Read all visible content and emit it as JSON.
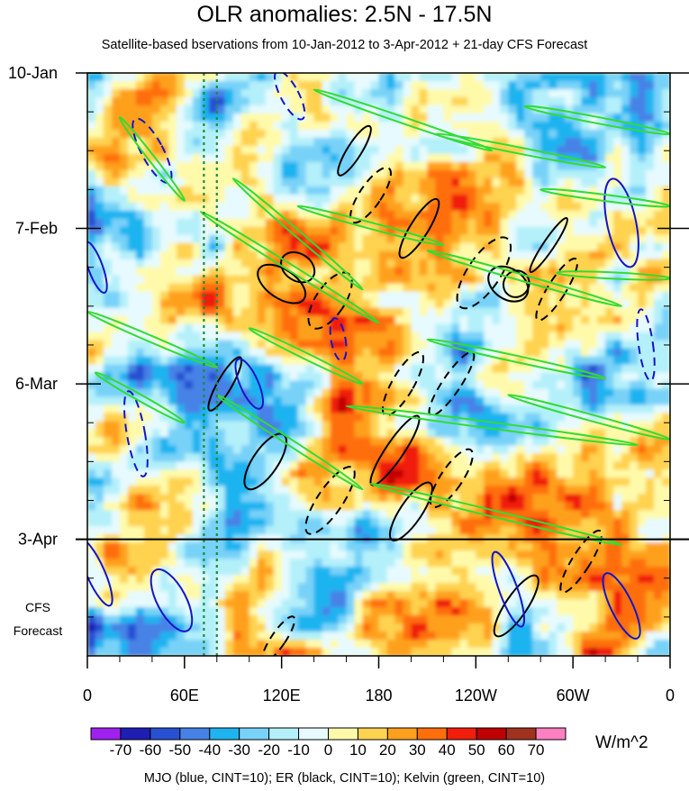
{
  "chart_data": {
    "type": "heatmap",
    "title": "OLR anomalies: 2.5N - 17.5N",
    "subtitle": "Satellite-based bservations from 10-Jan-2012 to 3-Apr-2012 + 21-day CFS Forecast",
    "xlabel": "",
    "ylabel": "",
    "x_tick_labels": [
      "0",
      "60E",
      "120E",
      "180",
      "120W",
      "60W",
      "0"
    ],
    "x_tick_values_deg_east": [
      0,
      60,
      120,
      180,
      240,
      300,
      360
    ],
    "y_tick_labels": [
      "10-Jan",
      "7-Feb",
      "6-Mar",
      "3-Apr"
    ],
    "y_range": [
      "10-Jan-2012",
      "24-Apr-2012"
    ],
    "observation_end": "3-Apr-2012",
    "forecast_label": [
      "CFS",
      "Forecast"
    ],
    "colorbar": {
      "units": "W/m^2",
      "tick_labels": [
        "-70",
        "-60",
        "-50",
        "-40",
        "-30",
        "-20",
        "-10",
        "0",
        "10",
        "20",
        "30",
        "40",
        "50",
        "60",
        "70"
      ],
      "colors": [
        "#a020f0",
        "#1e1eb4",
        "#2850d2",
        "#4682e6",
        "#1eb4f0",
        "#78d2f8",
        "#b4f0fa",
        "#e6faff",
        "#fffaaa",
        "#ffd250",
        "#ffa01e",
        "#ff6e0a",
        "#f01e0a",
        "#c00000",
        "#a0321e",
        "#ff80c0"
      ]
    },
    "vertical_reference_lines_deg_east": [
      72,
      80
    ],
    "overlays": {
      "mjo": {
        "color": "#1414c8",
        "cint": 10
      },
      "er": {
        "color": "#000000",
        "cint": 10
      },
      "kelvin": {
        "color": "#32dc32",
        "cint": 10
      }
    }
  },
  "caption": "MJO (blue, CINT=10); ER (black, CINT=10); Kelvin (green, CINT=10)"
}
